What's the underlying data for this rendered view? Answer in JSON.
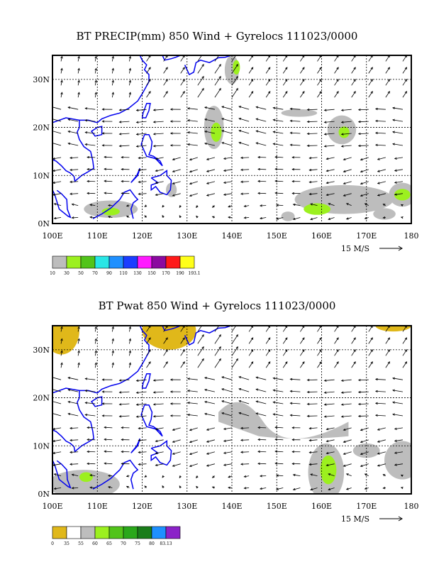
{
  "panels": [
    {
      "title": "BT PRECIP(mm) 850 Wind + Gyrelocs 111023/0000",
      "lat_labels": [
        "0N",
        "10N",
        "20N",
        "30N"
      ],
      "lon_labels": [
        "100E",
        "110E",
        "120E",
        "130E",
        "140E",
        "150E",
        "160E",
        "170E",
        "180"
      ],
      "vector_ref": "15 M/S",
      "colorbar": {
        "colors": [
          "#bdbdbd",
          "#9cf01f",
          "#52c41a",
          "#29e6e6",
          "#1e90ff",
          "#1a3dff",
          "#ff1aff",
          "#8b0aa0",
          "#ff1a1a",
          "#ffff1a"
        ],
        "labels": [
          "10",
          "30",
          "50",
          "70",
          "90",
          "110",
          "130",
          "150",
          "170",
          "190",
          "193.1"
        ]
      }
    },
    {
      "title": "BT Pwat 850 Wind + Gyrelocs 111023/0000",
      "lat_labels": [
        "0N",
        "10N",
        "20N",
        "30N"
      ],
      "lon_labels": [
        "100E",
        "110E",
        "120E",
        "130E",
        "140E",
        "150E",
        "160E",
        "170E",
        "180"
      ],
      "vector_ref": "15 M/S",
      "colorbar": {
        "colors": [
          "#e0b81a",
          "#ffffff",
          "#bdbdbd",
          "#9cf01f",
          "#52c41a",
          "#2aa81a",
          "#1a7d1a",
          "#1e90ff",
          "#8b22c8"
        ],
        "labels": [
          "0",
          "35",
          "55",
          "60",
          "65",
          "70",
          "75",
          "80",
          "83.13"
        ]
      }
    }
  ]
}
